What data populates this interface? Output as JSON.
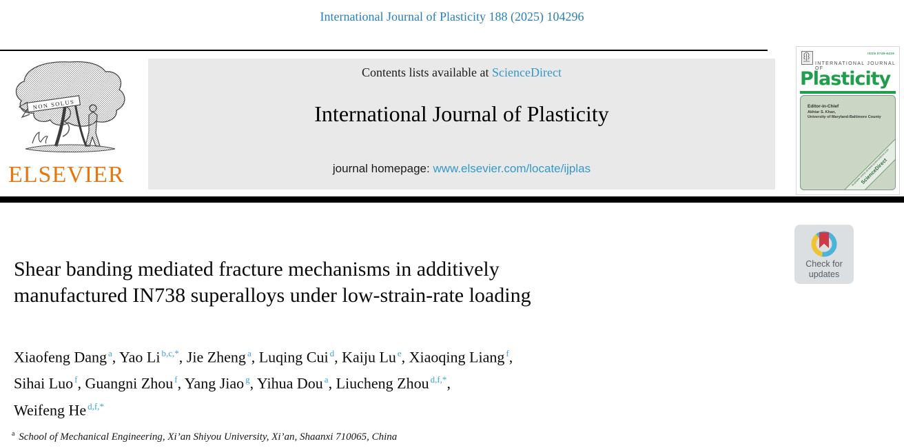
{
  "page": {
    "citation": "International Journal of Plasticity 188 (2025) 104296"
  },
  "publisher": {
    "name": "ELSEVIER",
    "motto": "NON SOLUS"
  },
  "banner": {
    "contents_prefix": "Contents lists available at ",
    "sciencedirect": "ScienceDirect",
    "journal_title": "International Journal of Plasticity",
    "homepage_prefix": "journal homepage: ",
    "homepage_url": "www.elsevier.com/locate/ijplas"
  },
  "cover": {
    "issn": "ISSN 0749-6419",
    "kicker": "INTERNATIONAL JOURNAL OF",
    "logo": "Plasticity",
    "editor_label": "Editor-in-Chief",
    "editor_name": "Akhtar S. Khan,",
    "editor_affiliation": "University of Maryland-Baltimore County",
    "available_online": "Available online at www.sciencedirect.com",
    "sciencedirect": "ScienceDirect"
  },
  "badge": {
    "line1": "Check for",
    "line2": "updates"
  },
  "article": {
    "title_line1": "Shear banding mediated fracture mechanisms in additively",
    "title_line2": "manufactured IN738 superalloys under low-strain-rate loading",
    "author_lines": [
      [
        {
          "name": "Xiaofeng Dang",
          "sup": "a",
          "after": ", "
        },
        {
          "name": "Yao Li",
          "sup": "b,c,*",
          "after": ", "
        },
        {
          "name": "Jie Zheng",
          "sup": "a",
          "after": ", "
        },
        {
          "name": "Luqing Cui",
          "sup": "d",
          "after": ", "
        },
        {
          "name": "Kaiju Lu",
          "sup": "e",
          "after": ", "
        },
        {
          "name": "Xiaoqing Liang",
          "sup": "f",
          "after": ","
        }
      ],
      [
        {
          "name": "Sihai Luo",
          "sup": "f",
          "after": ", "
        },
        {
          "name": "Guangni Zhou",
          "sup": "f",
          "after": ", "
        },
        {
          "name": "Yang Jiao",
          "sup": "g",
          "after": ", "
        },
        {
          "name": "Yihua Dou",
          "sup": "a",
          "after": ", "
        },
        {
          "name": "Liucheng Zhou",
          "sup": "d,f,*",
          "after": ","
        }
      ],
      [
        {
          "name": "Weifeng He",
          "sup": "d,f,*",
          "after": ""
        }
      ]
    ],
    "footnote_sup": "a",
    "footnote_text": " School of Mechanical Engineering, Xi’an Shiyou University, Xi’an, Shaanxi 710065, China"
  },
  "colors": {
    "citation_link": "#2a7fb8",
    "inline_link": "#3498cb",
    "affiliation_sup": "#3ba3dc",
    "banner_background": "#e9e9e9",
    "elsevier_orange": "#e8750f",
    "cover_green": "#1f9e4c",
    "cover_body_sage": "#cbd6c4",
    "badge_background": "#dcdfe1",
    "badge_ring_blue": "#4db3d8",
    "badge_ring_yellow": "#efc431",
    "badge_bookmark_red": "#cd3a45"
  }
}
